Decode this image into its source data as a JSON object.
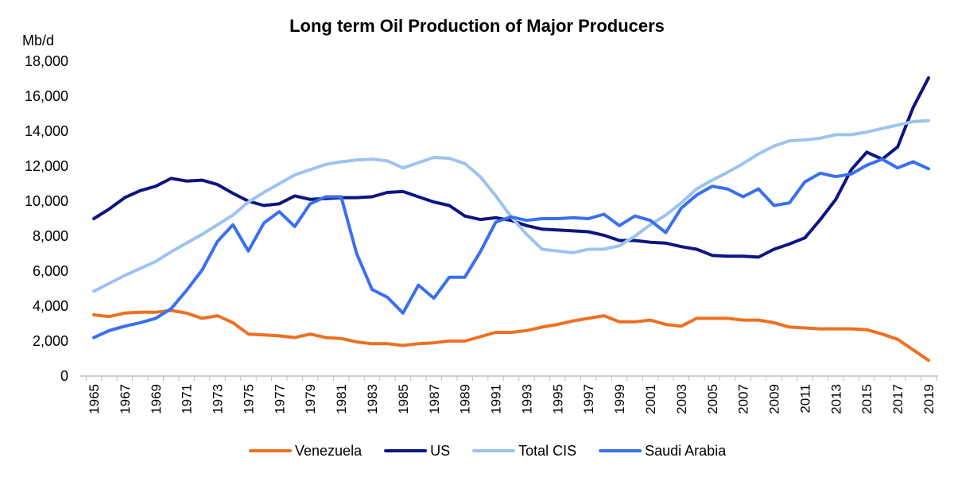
{
  "chart_data": {
    "type": "line",
    "title": "Long term Oil Production of Major Producers",
    "ylabel": "Mb/d",
    "xlabel": "",
    "ylim": [
      0,
      18000
    ],
    "yticks": [
      0,
      2000,
      4000,
      6000,
      8000,
      10000,
      12000,
      14000,
      16000,
      18000
    ],
    "ytick_labels": [
      "0",
      "2,000",
      "4,000",
      "6,000",
      "8,000",
      "10,000",
      "12,000",
      "14,000",
      "16,000",
      "18,000"
    ],
    "xtick_labels": [
      "1965",
      "1967",
      "1969",
      "1971",
      "1973",
      "1975",
      "1977",
      "1979",
      "1981",
      "1983",
      "1985",
      "1987",
      "1989",
      "1991",
      "1993",
      "1995",
      "1997",
      "1999",
      "2001",
      "2003",
      "2005",
      "2007",
      "2009",
      "2011",
      "2013",
      "2015",
      "2017",
      "2019"
    ],
    "x": [
      1965,
      1966,
      1967,
      1968,
      1969,
      1970,
      1971,
      1972,
      1973,
      1974,
      1975,
      1976,
      1977,
      1978,
      1979,
      1980,
      1981,
      1982,
      1983,
      1984,
      1985,
      1986,
      1987,
      1988,
      1989,
      1990,
      1991,
      1992,
      1993,
      1994,
      1995,
      1996,
      1997,
      1998,
      1999,
      2000,
      2001,
      2002,
      2003,
      2004,
      2005,
      2006,
      2007,
      2008,
      2009,
      2010,
      2011,
      2012,
      2013,
      2014,
      2015,
      2016,
      2017,
      2018,
      2019
    ],
    "grid": false,
    "legend_position": "bottom",
    "series": [
      {
        "name": "Venezuela",
        "color": "#ed7020",
        "values": [
          3500,
          3400,
          3600,
          3650,
          3650,
          3750,
          3600,
          3300,
          3450,
          3050,
          2400,
          2350,
          2300,
          2200,
          2400,
          2200,
          2150,
          1950,
          1850,
          1850,
          1750,
          1850,
          1900,
          2000,
          2000,
          2250,
          2500,
          2500,
          2600,
          2800,
          2950,
          3150,
          3300,
          3450,
          3100,
          3100,
          3200,
          2950,
          2850,
          3300,
          3300,
          3300,
          3200,
          3200,
          3050,
          2800,
          2750,
          2700,
          2700,
          2700,
          2650,
          2400,
          2100,
          1500,
          900
        ]
      },
      {
        "name": "US",
        "color": "#0c1580",
        "values": [
          9000,
          9550,
          10200,
          10600,
          10850,
          11300,
          11150,
          11200,
          10950,
          10450,
          10000,
          9750,
          9850,
          10300,
          10100,
          10150,
          10200,
          10200,
          10250,
          10500,
          10550,
          10250,
          9950,
          9750,
          9150,
          8950,
          9050,
          8900,
          8600,
          8400,
          8350,
          8300,
          8250,
          8050,
          7750,
          7750,
          7650,
          7600,
          7400,
          7250,
          6900,
          6850,
          6850,
          6800,
          7250,
          7550,
          7900,
          8950,
          10100,
          11800,
          12800,
          12400,
          13100,
          15350,
          17050
        ]
      },
      {
        "name": "Total CIS",
        "color": "#9dc3f0",
        "values": [
          4850,
          5300,
          5750,
          6150,
          6550,
          7100,
          7600,
          8100,
          8650,
          9200,
          9950,
          10500,
          11000,
          11500,
          11800,
          12100,
          12250,
          12350,
          12400,
          12300,
          11900,
          12200,
          12500,
          12450,
          12150,
          11400,
          10300,
          9100,
          8100,
          7250,
          7150,
          7050,
          7250,
          7250,
          7450,
          8000,
          8650,
          9200,
          9900,
          10700,
          11200,
          11650,
          12150,
          12700,
          13150,
          13450,
          13500,
          13600,
          13800,
          13800,
          13950,
          14150,
          14350,
          14550,
          14600
        ]
      },
      {
        "name": "Saudi Arabia",
        "color": "#3a6ff0",
        "values": [
          2200,
          2600,
          2850,
          3050,
          3300,
          3850,
          4900,
          6050,
          7700,
          8650,
          7150,
          8750,
          9400,
          8550,
          9850,
          10250,
          10250,
          7000,
          4950,
          4500,
          3600,
          5200,
          4450,
          5650,
          5650,
          7100,
          8800,
          9100,
          8900,
          9000,
          9000,
          9050,
          9000,
          9250,
          8600,
          9150,
          8900,
          8200,
          9600,
          10350,
          10850,
          10700,
          10250,
          10700,
          9750,
          9900,
          11100,
          11600,
          11400,
          11550,
          12050,
          12400,
          11900,
          12250,
          11850
        ]
      }
    ]
  }
}
